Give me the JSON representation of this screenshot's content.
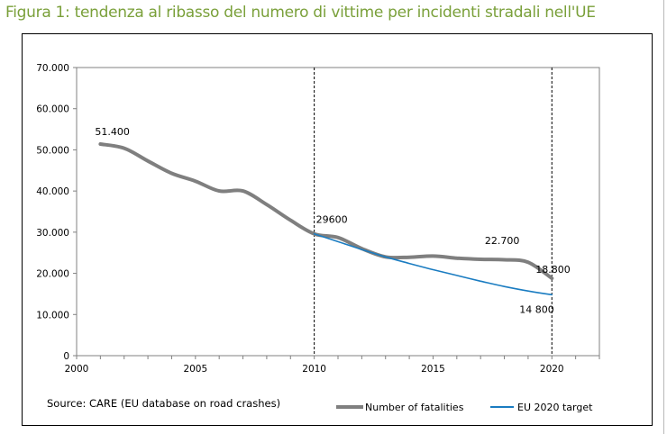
{
  "page": {
    "title": "Figura 1: tendenza al ribasso del numero di vittime per incidenti stradali nell'UE",
    "source": "Source: CARE (EU database on road crashes)"
  },
  "colors": {
    "title": "#7aa03a",
    "fatalities": "#7f7f7f",
    "target": "#1a7cc1"
  },
  "chart_data": {
    "type": "line",
    "xlim": [
      2000,
      2022
    ],
    "ylim": [
      0,
      70000
    ],
    "x_ticks": [
      2000,
      2005,
      2010,
      2015,
      2020
    ],
    "x_tick_labels": [
      "2000",
      "2005",
      "2010",
      "2015",
      "2020"
    ],
    "y_ticks": [
      0,
      10000,
      20000,
      30000,
      40000,
      50000,
      60000,
      70000
    ],
    "y_tick_labels": [
      "0",
      "10.000",
      "20.000",
      "30.000",
      "40.000",
      "50.000",
      "60.000",
      "70.000"
    ],
    "grid": false,
    "reference_lines_x": [
      2010,
      2020
    ],
    "legend_position": "bottom",
    "series": [
      {
        "name": "Number of fatalities",
        "color": "#7f7f7f",
        "x": [
          2001,
          2002,
          2003,
          2004,
          2005,
          2006,
          2007,
          2008,
          2009,
          2010,
          2011,
          2012,
          2013,
          2014,
          2015,
          2016,
          2017,
          2018,
          2019,
          2020
        ],
        "y": [
          51400,
          50400,
          47300,
          44300,
          42400,
          40000,
          40000,
          36700,
          32900,
          29600,
          28700,
          26000,
          24000,
          23900,
          24200,
          23700,
          23400,
          23300,
          22700,
          18800
        ]
      },
      {
        "name": "EU 2020 target",
        "color": "#1a7cc1",
        "x": [
          2010,
          2011,
          2012,
          2013,
          2014,
          2015,
          2016,
          2017,
          2018,
          2019,
          2020
        ],
        "y": [
          29600,
          27700,
          25800,
          24000,
          22400,
          20900,
          19500,
          18100,
          16800,
          15700,
          14800
        ]
      }
    ],
    "annotations": [
      {
        "text": "51.400",
        "x": 2001,
        "y": 51400
      },
      {
        "text": "29600",
        "x": 2010,
        "y": 29600
      },
      {
        "text": "22.700",
        "x": 2019,
        "y": 22700
      },
      {
        "text": "18.800",
        "x": 2020,
        "y": 18800
      },
      {
        "text": "14 800",
        "x": 2020,
        "y": 14800
      }
    ]
  }
}
